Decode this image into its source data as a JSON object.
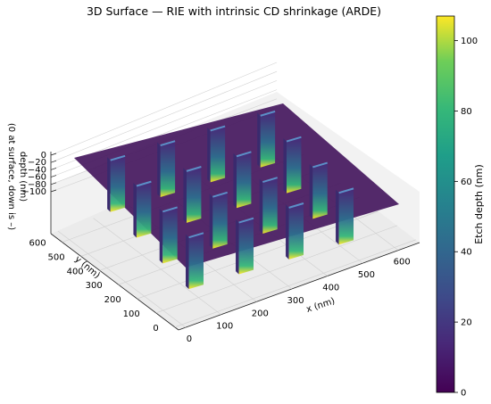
{
  "chart_data": {
    "type": "surface-3d",
    "title": "3D Surface — RIE with intrinsic CD shrinkage (ARDE)",
    "xlabel": "x (nm)",
    "ylabel": "y (nm)",
    "zlabel_line1": "depth (nm)",
    "zlabel_line2": "(0 at surface, down is –)",
    "x_ticks": [
      "0",
      "100",
      "200",
      "300",
      "400",
      "500",
      "600"
    ],
    "y_ticks": [
      "0",
      "100",
      "200",
      "300",
      "400",
      "500",
      "600"
    ],
    "z_ticks": [
      "0",
      "−20",
      "−40",
      "−60",
      "−80",
      "−100"
    ],
    "xlim": [
      0,
      640
    ],
    "ylim": [
      0,
      640
    ],
    "zlim": [
      -100,
      0
    ],
    "colorbar": {
      "label": "Etch depth (nm)",
      "ticks": [
        "0",
        "20",
        "40",
        "60",
        "80",
        "100"
      ],
      "range": [
        0,
        107
      ],
      "colormap": "viridis"
    },
    "surface_color": "#45185e",
    "grid": true,
    "trenches": {
      "x_centers": [
        100,
        250,
        400,
        550
      ],
      "y_centers": [
        140,
        290,
        440,
        590
      ],
      "depth": 100
    }
  }
}
